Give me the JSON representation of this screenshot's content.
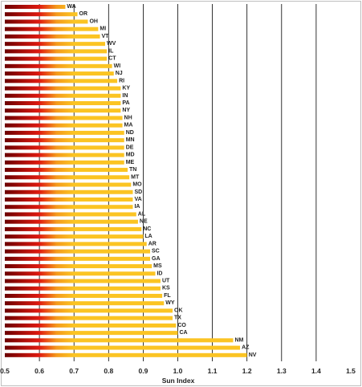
{
  "chart_data": {
    "type": "bar",
    "orientation": "horizontal",
    "title": "",
    "xlabel": "Sun Index",
    "ylabel": "",
    "xlim": [
      0.5,
      1.5
    ],
    "xticks": [
      "0.5",
      "0.6",
      "0.7",
      "0.8",
      "0.9",
      "1.0",
      "1.1",
      "1.2",
      "1.3",
      "1.4",
      "1.5"
    ],
    "grid": "vertical",
    "colors": {
      "dark": "#6b0000",
      "red": "#e01a10",
      "orange": "#f49a1c",
      "yellow": "#fbc423",
      "grid": "#000000"
    },
    "categories": [
      "WA",
      "OR",
      "OH",
      "MI",
      "VT",
      "WV",
      "IL",
      "CT",
      "WI",
      "NJ",
      "RI",
      "KY",
      "IN",
      "PA",
      "NY",
      "NH",
      "MA",
      "ND",
      "MN",
      "DE",
      "MD",
      "ME",
      "TN",
      "MT",
      "MO",
      "SD",
      "VA",
      "IA",
      "AL",
      "NE",
      "NC",
      "LA",
      "AR",
      "SC",
      "GA",
      "MS",
      "ID",
      "UT",
      "KS",
      "FL",
      "WY",
      "OK",
      "TX",
      "CO",
      "CA",
      "NM",
      "AZ",
      "NV"
    ],
    "values": [
      0.675,
      0.71,
      0.74,
      0.77,
      0.775,
      0.79,
      0.795,
      0.795,
      0.81,
      0.815,
      0.825,
      0.835,
      0.835,
      0.835,
      0.835,
      0.84,
      0.84,
      0.845,
      0.845,
      0.845,
      0.845,
      0.845,
      0.855,
      0.86,
      0.865,
      0.87,
      0.87,
      0.87,
      0.88,
      0.885,
      0.895,
      0.9,
      0.91,
      0.92,
      0.92,
      0.925,
      0.935,
      0.95,
      0.95,
      0.955,
      0.96,
      0.985,
      0.985,
      0.995,
      1.0,
      1.16,
      1.18,
      1.2
    ]
  }
}
